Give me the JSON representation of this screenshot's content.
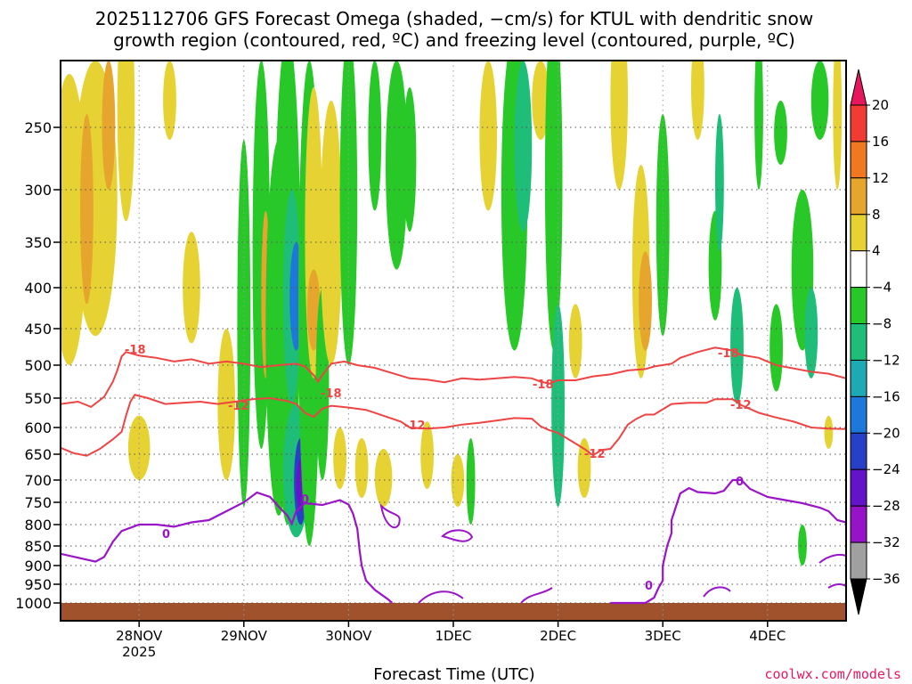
{
  "chart_data": {
    "type": "heatmap",
    "title_line1": "2025112706 GFS Forecast Omega (shaded, −cm/s) for KTUL with dendritic snow",
    "title_line2": "growth region (contoured, red, ºC) and freezing level (contoured, purple, ºC)",
    "xlabel": "Forecast Time (UTC)",
    "ylabel": "",
    "credit": "coolwx.com/models",
    "x_ticks": [
      {
        "label": "28NOV",
        "sub": "2025",
        "hour": 18
      },
      {
        "label": "29NOV",
        "sub": "",
        "hour": 42
      },
      {
        "label": "30NOV",
        "sub": "",
        "hour": 66
      },
      {
        "label": "1DEC",
        "sub": "",
        "hour": 90
      },
      {
        "label": "2DEC",
        "sub": "",
        "hour": 114
      },
      {
        "label": "3DEC",
        "sub": "",
        "hour": 138
      },
      {
        "label": "4DEC",
        "sub": "",
        "hour": 162
      }
    ],
    "x_range_hours": [
      0,
      180
    ],
    "y_ticks": [
      "250",
      "300",
      "350",
      "400",
      "450",
      "500",
      "550",
      "600",
      "650",
      "700",
      "750",
      "800",
      "850",
      "900",
      "950",
      "1000"
    ],
    "y_range_hpa": [
      200,
      1020
    ],
    "colorbar": {
      "labels": [
        "20",
        "16",
        "12",
        "8",
        "4",
        "−4",
        "−8",
        "−12",
        "−16",
        "−20",
        "−24",
        "−28",
        "−32",
        "−36"
      ],
      "colors": [
        "#e8175d",
        "#f03c32",
        "#f07820",
        "#e6a52d",
        "#e6d232",
        "#ffffff",
        "#28c828",
        "#1ebe78",
        "#1eaab4",
        "#1e78dc",
        "#2840c8",
        "#6414c8",
        "#9614c8",
        "#a0a0a0",
        "#000000"
      ]
    },
    "contour_labels": [
      "-18",
      "-12",
      "0"
    ],
    "contours": {
      "dgz_top_minus18": [
        [
          0,
          560
        ],
        [
          4,
          556
        ],
        [
          7,
          565
        ],
        [
          10,
          548
        ],
        [
          12,
          525
        ],
        [
          13,
          508
        ],
        [
          14,
          488
        ],
        [
          15,
          482
        ],
        [
          18,
          487
        ],
        [
          22,
          490
        ],
        [
          26,
          495
        ],
        [
          30,
          492
        ],
        [
          34,
          498
        ],
        [
          38,
          495
        ],
        [
          42,
          498
        ],
        [
          46,
          503
        ],
        [
          50,
          500
        ],
        [
          54,
          498
        ],
        [
          56,
          502
        ],
        [
          58,
          515
        ],
        [
          59,
          525
        ],
        [
          60,
          515
        ],
        [
          62,
          498
        ],
        [
          65,
          495
        ],
        [
          68,
          500
        ],
        [
          72,
          504
        ],
        [
          76,
          512
        ],
        [
          80,
          520
        ],
        [
          84,
          522
        ],
        [
          88,
          526
        ],
        [
          92,
          520
        ],
        [
          96,
          522
        ],
        [
          100,
          520
        ],
        [
          104,
          518
        ],
        [
          108,
          520
        ],
        [
          110,
          525
        ],
        [
          112,
          528
        ],
        [
          114,
          523
        ],
        [
          118,
          523
        ],
        [
          122,
          517
        ],
        [
          126,
          514
        ],
        [
          130,
          508
        ],
        [
          134,
          506
        ],
        [
          136,
          502
        ],
        [
          140,
          498
        ],
        [
          142,
          490
        ],
        [
          146,
          482
        ],
        [
          150,
          476
        ],
        [
          154,
          480
        ],
        [
          156,
          486
        ],
        [
          160,
          490
        ],
        [
          164,
          500
        ],
        [
          168,
          505
        ],
        [
          172,
          510
        ],
        [
          176,
          513
        ],
        [
          180,
          520
        ]
      ],
      "dgz_bottom_minus12": [
        [
          0,
          638
        ],
        [
          3,
          648
        ],
        [
          6,
          653
        ],
        [
          9,
          640
        ],
        [
          12,
          622
        ],
        [
          14,
          608
        ],
        [
          15,
          580
        ],
        [
          16,
          556
        ],
        [
          17,
          545
        ],
        [
          20,
          550
        ],
        [
          24,
          560
        ],
        [
          28,
          558
        ],
        [
          32,
          556
        ],
        [
          36,
          560
        ],
        [
          40,
          556
        ],
        [
          44,
          552
        ],
        [
          48,
          550
        ],
        [
          52,
          555
        ],
        [
          54,
          560
        ],
        [
          56,
          575
        ],
        [
          58,
          582
        ],
        [
          60,
          568
        ],
        [
          62,
          563
        ],
        [
          66,
          566
        ],
        [
          70,
          570
        ],
        [
          74,
          580
        ],
        [
          78,
          590
        ],
        [
          80,
          600
        ],
        [
          84,
          602
        ],
        [
          88,
          600
        ],
        [
          92,
          595
        ],
        [
          96,
          592
        ],
        [
          100,
          588
        ],
        [
          104,
          584
        ],
        [
          108,
          585
        ],
        [
          110,
          598
        ],
        [
          112,
          605
        ],
        [
          114,
          610
        ],
        [
          116,
          620
        ],
        [
          118,
          630
        ],
        [
          120,
          640
        ],
        [
          122,
          652
        ],
        [
          124,
          642
        ],
        [
          126,
          640
        ],
        [
          128,
          620
        ],
        [
          130,
          595
        ],
        [
          132,
          585
        ],
        [
          134,
          578
        ],
        [
          136,
          578
        ],
        [
          140,
          560
        ],
        [
          144,
          558
        ],
        [
          148,
          558
        ],
        [
          150,
          552
        ],
        [
          154,
          552
        ],
        [
          156,
          562
        ],
        [
          160,
          575
        ],
        [
          164,
          583
        ],
        [
          168,
          590
        ],
        [
          172,
          600
        ],
        [
          176,
          602
        ],
        [
          180,
          603
        ]
      ],
      "freezing_level_0": [
        [
          0,
          870
        ],
        [
          4,
          880
        ],
        [
          8,
          890
        ],
        [
          10,
          878
        ],
        [
          12,
          840
        ],
        [
          14,
          815
        ],
        [
          18,
          800
        ],
        [
          22,
          800
        ],
        [
          26,
          805
        ],
        [
          30,
          795
        ],
        [
          34,
          790
        ],
        [
          38,
          770
        ],
        [
          42,
          750
        ],
        [
          45,
          728
        ],
        [
          48,
          738
        ],
        [
          50,
          760
        ],
        [
          52,
          780
        ],
        [
          53,
          798
        ],
        [
          54,
          770
        ],
        [
          56,
          752
        ],
        [
          60,
          756
        ],
        [
          64,
          745
        ],
        [
          66,
          755
        ],
        [
          67,
          775
        ],
        [
          68,
          810
        ],
        [
          68.5,
          860
        ],
        [
          69,
          900
        ],
        [
          70,
          940
        ],
        [
          72,
          965
        ],
        [
          75,
          990
        ],
        [
          76,
          1000
        ]
      ],
      "freezing_level_0_east": [
        [
          126,
          1000
        ],
        [
          134,
          1000
        ],
        [
          136,
          986
        ],
        [
          137,
          960
        ],
        [
          138,
          940
        ],
        [
          138,
          900
        ],
        [
          139,
          850
        ],
        [
          140,
          820
        ],
        [
          140,
          790
        ],
        [
          141,
          760
        ],
        [
          142,
          730
        ],
        [
          144,
          718
        ],
        [
          146,
          727
        ],
        [
          150,
          730
        ],
        [
          152,
          724
        ],
        [
          154,
          700
        ],
        [
          156,
          700
        ],
        [
          158,
          720
        ],
        [
          162,
          738
        ],
        [
          166,
          745
        ],
        [
          170,
          752
        ],
        [
          174,
          762
        ],
        [
          176,
          770
        ],
        [
          178,
          790
        ],
        [
          180,
          795
        ]
      ]
    }
  }
}
